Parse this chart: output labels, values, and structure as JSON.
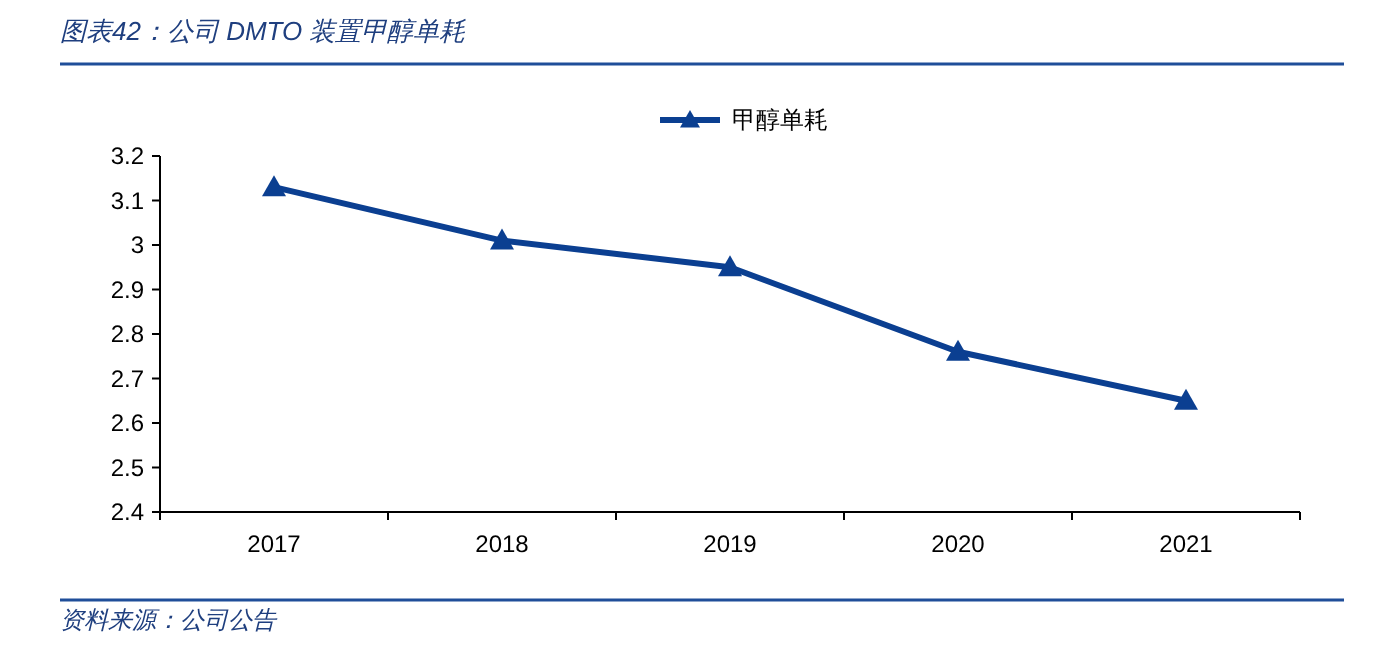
{
  "chart_data": {
    "type": "line",
    "title": "图表42：公司 DMTO 装置甲醇单耗",
    "annotations": [
      "资料来源：公司公告"
    ],
    "categories": [
      "2017",
      "2018",
      "2019",
      "2020",
      "2021"
    ],
    "series": [
      {
        "name": "甲醇单耗",
        "color": "#0b3f91",
        "values": [
          3.13,
          3.01,
          2.95,
          2.76,
          2.65
        ]
      }
    ],
    "ylim": [
      2.4,
      3.2
    ],
    "yticks": [
      2.4,
      2.5,
      2.6,
      2.7,
      2.8,
      2.9,
      3,
      3.1,
      3.2
    ],
    "marker": "triangle",
    "line_style": "solid",
    "legend": "top",
    "grid": false
  }
}
